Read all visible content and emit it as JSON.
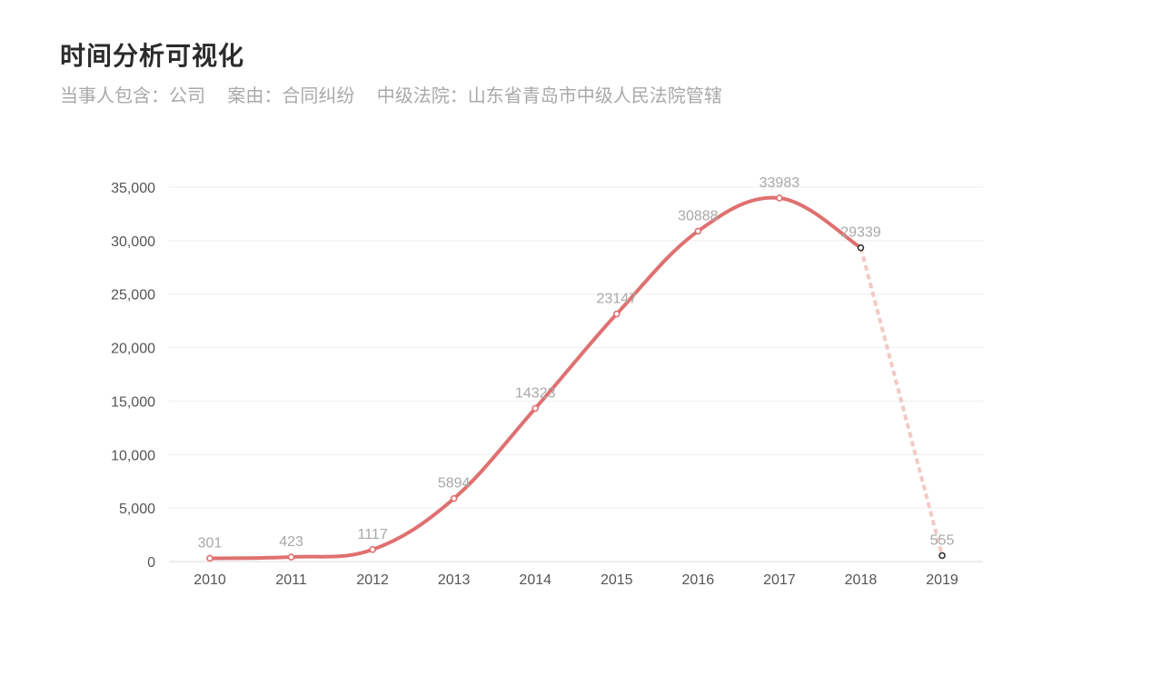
{
  "header": {
    "title": "时间分析可视化",
    "filters": [
      "当事人包含：公司",
      "案由：合同纠纷",
      "中级法院：山东省青岛市中级人民法院管辖"
    ]
  },
  "colors": {
    "line": "#e07070",
    "projection": "#f3c9c6",
    "grid": "#eeeeee",
    "pending_point": "#333333"
  },
  "chart_data": {
    "type": "line",
    "categories": [
      "2010",
      "2011",
      "2012",
      "2013",
      "2014",
      "2015",
      "2016",
      "2017",
      "2018",
      "2019"
    ],
    "series": [
      {
        "values": [
          301,
          423,
          1117,
          5894,
          14323,
          23147,
          30888,
          33983,
          29339,
          555
        ]
      }
    ],
    "dashed_last_segment": true,
    "ylim": [
      0,
      35000
    ],
    "yticks": [
      "0",
      "5,000",
      "10,000",
      "15,000",
      "20,000",
      "25,000",
      "30,000",
      "35,000"
    ],
    "grid": true,
    "xlabel": "",
    "ylabel": ""
  }
}
